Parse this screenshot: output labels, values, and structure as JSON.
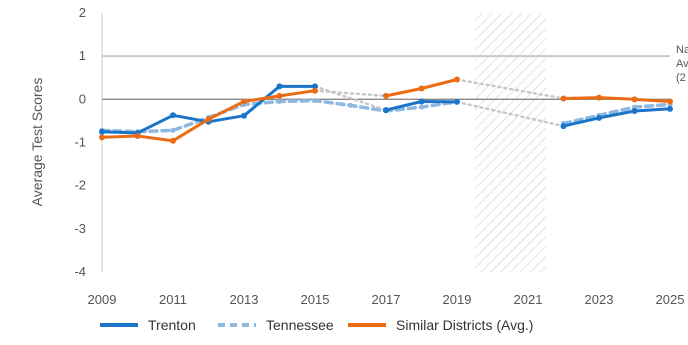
{
  "chart_data": {
    "type": "line",
    "xlabel": "",
    "ylabel": "Average Test Scores",
    "xlim": [
      2009,
      2025
    ],
    "ylim": [
      -4,
      2
    ],
    "xticks": [
      "2009",
      "2011",
      "2013",
      "2015",
      "2017",
      "2019",
      "2021",
      "2023",
      "2025"
    ],
    "yticks": [
      "2",
      "1",
      "0",
      "-1",
      "-2",
      "-3",
      "-4"
    ],
    "reference_line": {
      "value": 1,
      "label_lines": [
        "Na",
        "Av",
        "(2"
      ]
    },
    "shaded_range": [
      2019.5,
      2021.5
    ],
    "series": [
      {
        "name": "Trenton",
        "color": "#1a75c9",
        "style": "solid",
        "points": [
          [
            2009,
            -0.75
          ],
          [
            2010,
            -0.78
          ],
          [
            2011,
            -0.37
          ],
          [
            2012,
            -0.52
          ],
          [
            2013,
            -0.38
          ],
          [
            2014,
            0.3
          ],
          [
            2015,
            0.3
          ],
          [
            2017,
            -0.25
          ],
          [
            2018,
            -0.05
          ],
          [
            2019,
            -0.06
          ],
          [
            2022,
            -0.62
          ],
          [
            2023,
            -0.43
          ],
          [
            2024,
            -0.27
          ],
          [
            2025,
            -0.22
          ]
        ]
      },
      {
        "name": "Tennessee",
        "color": "#8fb8e0",
        "style": "dashed",
        "points": [
          [
            2009,
            -0.72
          ],
          [
            2010,
            -0.75
          ],
          [
            2011,
            -0.72
          ],
          [
            2012,
            -0.42
          ],
          [
            2013,
            -0.12
          ],
          [
            2014,
            -0.05
          ],
          [
            2015,
            -0.03
          ],
          [
            2016,
            -0.14
          ],
          [
            2017,
            -0.27
          ],
          [
            2018,
            -0.18
          ],
          [
            2019,
            -0.06
          ],
          [
            2022,
            -0.56
          ],
          [
            2023,
            -0.37
          ],
          [
            2024,
            -0.18
          ],
          [
            2025,
            -0.12
          ]
        ]
      },
      {
        "name": "Similar Districts (Avg.)",
        "color": "#ec6b15",
        "style": "solid",
        "points": [
          [
            2009,
            -0.88
          ],
          [
            2010,
            -0.85
          ],
          [
            2011,
            -0.96
          ],
          [
            2012,
            -0.46
          ],
          [
            2013,
            -0.05
          ],
          [
            2014,
            0.08
          ],
          [
            2015,
            0.2
          ],
          [
            2017,
            0.08
          ],
          [
            2018,
            0.25
          ],
          [
            2019,
            0.46
          ],
          [
            2022,
            0.02
          ],
          [
            2023,
            0.04
          ],
          [
            2024,
            0.0
          ],
          [
            2025,
            -0.05
          ]
        ]
      }
    ],
    "gap_connectors": [
      {
        "from": [
          2015,
          0.3
        ],
        "to": [
          2017,
          -0.25
        ]
      },
      {
        "from": [
          2015,
          0.2
        ],
        "to": [
          2017,
          0.08
        ]
      },
      {
        "from": [
          2019,
          -0.06
        ],
        "to": [
          2022,
          -0.62
        ]
      },
      {
        "from": [
          2019,
          0.46
        ],
        "to": [
          2022,
          0.02
        ]
      }
    ],
    "legend": {
      "position": "bottom",
      "items": [
        "Trenton",
        "Tennessee",
        "Similar Districts (Avg.)"
      ]
    },
    "grid": false
  }
}
